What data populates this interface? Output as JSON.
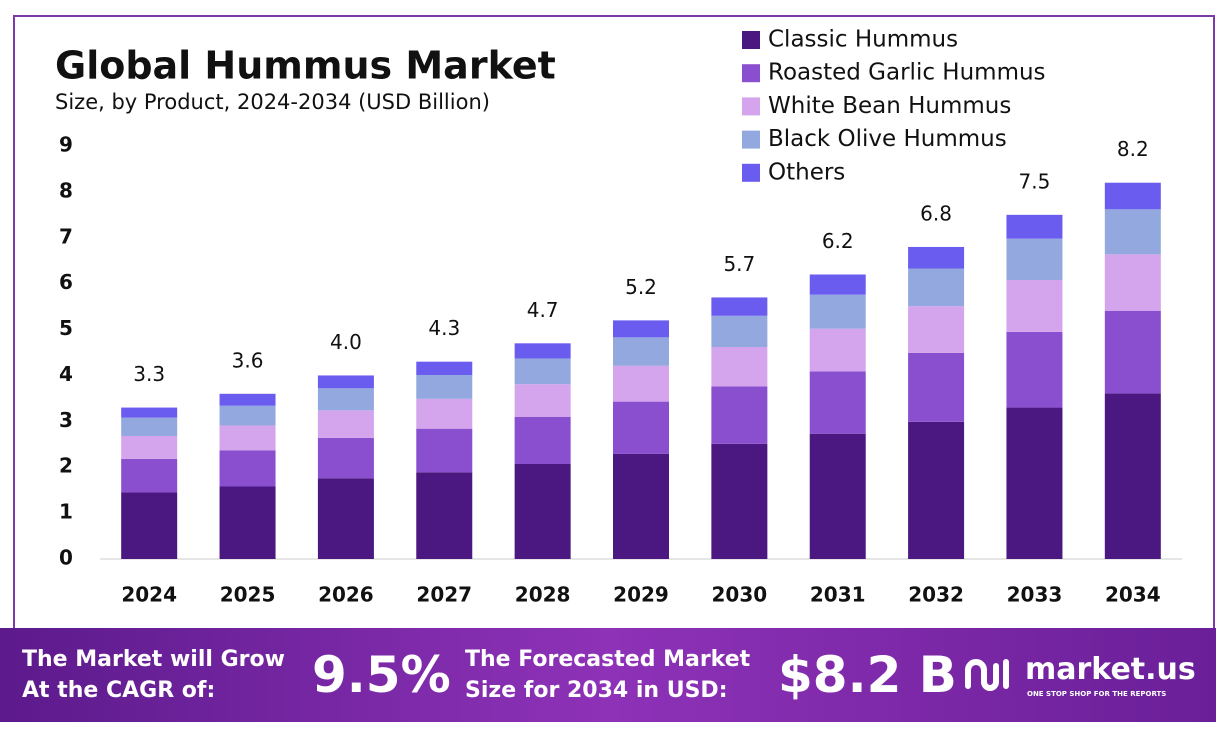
{
  "chart_data": {
    "type": "stacked-bar",
    "title": "Global Hummus Market",
    "subtitle": "Size, by Product, 2024-2034 (USD Billion)",
    "categories": [
      "2024",
      "2025",
      "2026",
      "2027",
      "2028",
      "2029",
      "2030",
      "2031",
      "2032",
      "2033",
      "2034"
    ],
    "series": [
      {
        "name": "Classic Hummus",
        "color": "#4b1780",
        "values": [
          1.45,
          1.58,
          1.76,
          1.89,
          2.07,
          2.29,
          2.51,
          2.73,
          2.99,
          3.3,
          3.61
        ]
      },
      {
        "name": "Roasted Garlic Hummus",
        "color": "#8a4fcf",
        "values": [
          0.73,
          0.79,
          0.88,
          0.95,
          1.03,
          1.14,
          1.25,
          1.36,
          1.5,
          1.65,
          1.8
        ]
      },
      {
        "name": "White Bean Hummus",
        "color": "#d4a5ec",
        "values": [
          0.5,
          0.54,
          0.6,
          0.65,
          0.71,
          0.78,
          0.86,
          0.93,
          1.02,
          1.13,
          1.23
        ]
      },
      {
        "name": "Black Olive Hummus",
        "color": "#92a8de",
        "values": [
          0.4,
          0.43,
          0.48,
          0.52,
          0.56,
          0.62,
          0.68,
          0.74,
          0.82,
          0.9,
          0.98
        ]
      },
      {
        "name": "Others",
        "color": "#6b5cf0",
        "values": [
          0.22,
          0.26,
          0.28,
          0.29,
          0.33,
          0.37,
          0.4,
          0.44,
          0.47,
          0.52,
          0.58
        ]
      }
    ],
    "total_values": [
      3.3,
      3.6,
      4.0,
      4.3,
      4.7,
      5.2,
      5.7,
      6.2,
      6.8,
      7.5,
      8.2
    ],
    "total_value_labels": [
      "3.3",
      "3.6",
      "4.0",
      "4.3",
      "4.7",
      "5.2",
      "5.7",
      "6.2",
      "6.8",
      "7.5",
      "8.2"
    ],
    "ylim": [
      0,
      9
    ],
    "yticks": [
      0,
      1,
      2,
      3,
      4,
      5,
      6,
      7,
      8,
      9
    ],
    "grid": false,
    "legend": "top-right"
  },
  "footer": {
    "cagr_text": [
      "The Market will Grow",
      "At the CAGR of:"
    ],
    "cagr_value": "9.5%",
    "forecast_text": [
      "The Forecasted Market",
      "Size for 2034 in USD:"
    ],
    "forecast_value": "$8.2 B",
    "brand": "market.us",
    "tagline": "ONE STOP SHOP FOR THE REPORTS"
  }
}
